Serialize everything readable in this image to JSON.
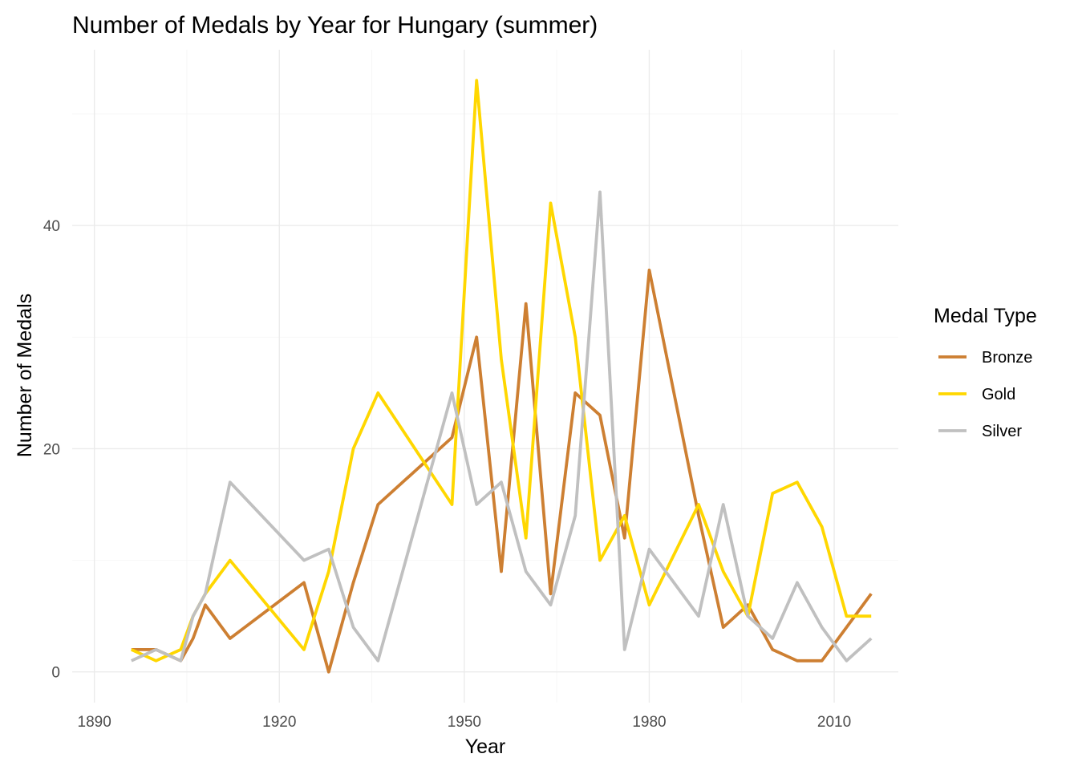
{
  "chart_data": {
    "type": "line",
    "title": "Number of Medals by Year for Hungary (summer)",
    "xlabel": "Year",
    "ylabel": "Number of Medals",
    "xlim": [
      1886.4,
      2020.4
    ],
    "ylim": [
      -2.75,
      55.75
    ],
    "x_ticks": [
      1890,
      1920,
      1950,
      1980,
      2010
    ],
    "y_ticks": [
      0,
      20,
      40
    ],
    "grid": true,
    "legend": {
      "title": "Medal Type",
      "position": "right"
    },
    "series": [
      {
        "name": "Bronze",
        "color": "#CD7F32",
        "points": [
          [
            1896,
            2
          ],
          [
            1900,
            2
          ],
          [
            1904,
            1
          ],
          [
            1906,
            3
          ],
          [
            1908,
            6
          ],
          [
            1912,
            3
          ],
          [
            1924,
            8
          ],
          [
            1928,
            0
          ],
          [
            1932,
            8
          ],
          [
            1936,
            15
          ],
          [
            1948,
            21
          ],
          [
            1952,
            30
          ],
          [
            1956,
            9
          ],
          [
            1960,
            33
          ],
          [
            1964,
            7
          ],
          [
            1968,
            25
          ],
          [
            1972,
            23
          ],
          [
            1976,
            12
          ],
          [
            1980,
            36
          ],
          [
            1988,
            14
          ],
          [
            1992,
            4
          ],
          [
            1996,
            6
          ],
          [
            2000,
            2
          ],
          [
            2004,
            1
          ],
          [
            2008,
            1
          ],
          [
            2016,
            7
          ]
        ]
      },
      {
        "name": "Gold",
        "color": "#FFD700",
        "points": [
          [
            1896,
            2
          ],
          [
            1900,
            1
          ],
          [
            1904,
            2
          ],
          [
            1906,
            5
          ],
          [
            1908,
            7
          ],
          [
            1912,
            10
          ],
          [
            1924,
            2
          ],
          [
            1928,
            9
          ],
          [
            1932,
            20
          ],
          [
            1936,
            25
          ],
          [
            1948,
            15
          ],
          [
            1952,
            53
          ],
          [
            1956,
            28
          ],
          [
            1960,
            12
          ],
          [
            1964,
            42
          ],
          [
            1968,
            30
          ],
          [
            1972,
            10
          ],
          [
            1976,
            14
          ],
          [
            1980,
            6
          ],
          [
            1988,
            15
          ],
          [
            1992,
            9
          ],
          [
            1996,
            5
          ],
          [
            2000,
            16
          ],
          [
            2004,
            17
          ],
          [
            2008,
            13
          ],
          [
            2012,
            5
          ],
          [
            2016,
            5
          ]
        ]
      },
      {
        "name": "Silver",
        "color": "#C0C0C0",
        "points": [
          [
            1896,
            1
          ],
          [
            1900,
            2
          ],
          [
            1904,
            1
          ],
          [
            1906,
            5
          ],
          [
            1908,
            7
          ],
          [
            1912,
            17
          ],
          [
            1924,
            10
          ],
          [
            1928,
            11
          ],
          [
            1932,
            4
          ],
          [
            1936,
            1
          ],
          [
            1948,
            25
          ],
          [
            1952,
            15
          ],
          [
            1956,
            17
          ],
          [
            1960,
            9
          ],
          [
            1964,
            6
          ],
          [
            1968,
            14
          ],
          [
            1972,
            43
          ],
          [
            1976,
            2
          ],
          [
            1980,
            11
          ],
          [
            1988,
            5
          ],
          [
            1992,
            15
          ],
          [
            1996,
            5
          ],
          [
            2000,
            3
          ],
          [
            2004,
            8
          ],
          [
            2008,
            4
          ],
          [
            2012,
            1
          ],
          [
            2016,
            3
          ]
        ]
      }
    ]
  }
}
